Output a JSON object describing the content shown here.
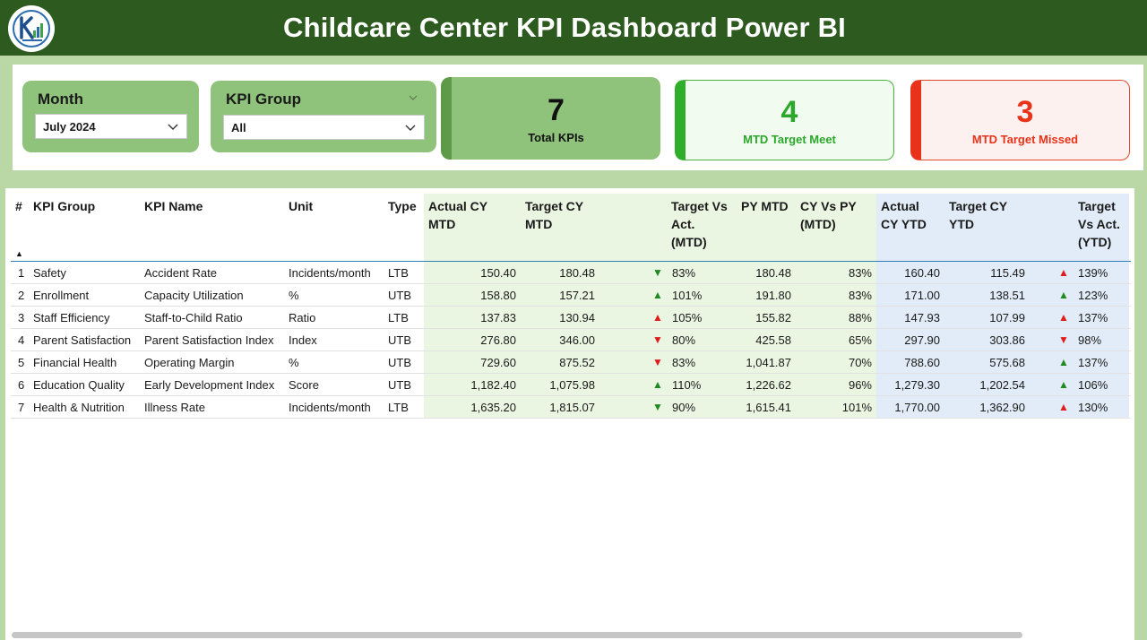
{
  "title": "Childcare Center KPI Dashboard Power BI",
  "slicers": {
    "month": {
      "label": "Month",
      "value": "July 2024"
    },
    "kpi_group": {
      "label": "KPI Group",
      "value": "All"
    }
  },
  "cards": {
    "total": {
      "value": "7",
      "label": "Total KPIs"
    },
    "meet": {
      "value": "4",
      "label": "MTD Target Meet"
    },
    "missed": {
      "value": "3",
      "label": "MTD Target Missed"
    }
  },
  "colors": {
    "header_bg": "#2d5a1e",
    "slicer_bg": "#8fc27a",
    "meet_green": "#2aa82a",
    "missed_red": "#e8331a",
    "mtd_bg": "#eaf6e2",
    "ytd_bg": "#e1ecf8"
  },
  "table": {
    "headers": {
      "num": "#",
      "group": "KPI Group",
      "name": "KPI Name",
      "unit": "Unit",
      "type": "Type",
      "actual_mtd_1": "Actual CY",
      "actual_mtd_2": "MTD",
      "target_mtd_1": "Target CY",
      "target_mtd_2": "MTD",
      "tva_mtd_1": "Target Vs",
      "tva_mtd_2": "Act.",
      "tva_mtd_3": "(MTD)",
      "py_mtd": "PY MTD",
      "cyvpy_1": "CY Vs PY",
      "cyvpy_2": "(MTD)",
      "actual_ytd_1": "Actual",
      "actual_ytd_2": "CY YTD",
      "target_ytd_1": "Target CY",
      "target_ytd_2": "YTD",
      "tva_ytd_1": "Target",
      "tva_ytd_2": "Vs Act.",
      "tva_ytd_3": "(YTD)"
    },
    "rows": [
      {
        "num": "1",
        "group": "Safety",
        "name": "Accident Rate",
        "unit": "Incidents/month",
        "type": "LTB",
        "actual_mtd": "150.40",
        "target_mtd": "180.48",
        "mtd_icon": "down-green",
        "tva_mtd": "83%",
        "py_mtd": "180.48",
        "cyvpy": "83%",
        "actual_ytd": "160.40",
        "target_ytd": "115.49",
        "ytd_icon": "up-red",
        "tva_ytd": "139%"
      },
      {
        "num": "2",
        "group": "Enrollment",
        "name": "Capacity Utilization",
        "unit": "%",
        "type": "UTB",
        "actual_mtd": "158.80",
        "target_mtd": "157.21",
        "mtd_icon": "up-green",
        "tva_mtd": "101%",
        "py_mtd": "191.80",
        "cyvpy": "83%",
        "actual_ytd": "171.00",
        "target_ytd": "138.51",
        "ytd_icon": "up-green",
        "tva_ytd": "123%"
      },
      {
        "num": "3",
        "group": "Staff Efficiency",
        "name": "Staff-to-Child Ratio",
        "unit": "Ratio",
        "type": "LTB",
        "actual_mtd": "137.83",
        "target_mtd": "130.94",
        "mtd_icon": "up-red",
        "tva_mtd": "105%",
        "py_mtd": "155.82",
        "cyvpy": "88%",
        "actual_ytd": "147.93",
        "target_ytd": "107.99",
        "ytd_icon": "up-red",
        "tva_ytd": "137%"
      },
      {
        "num": "4",
        "group": "Parent Satisfaction",
        "name": "Parent Satisfaction Index",
        "unit": "Index",
        "type": "UTB",
        "actual_mtd": "276.80",
        "target_mtd": "346.00",
        "mtd_icon": "down-red",
        "tva_mtd": "80%",
        "py_mtd": "425.58",
        "cyvpy": "65%",
        "actual_ytd": "297.90",
        "target_ytd": "303.86",
        "ytd_icon": "down-red",
        "tva_ytd": "98%"
      },
      {
        "num": "5",
        "group": "Financial Health",
        "name": "Operating Margin",
        "unit": "%",
        "type": "UTB",
        "actual_mtd": "729.60",
        "target_mtd": "875.52",
        "mtd_icon": "down-red",
        "tva_mtd": "83%",
        "py_mtd": "1,041.87",
        "cyvpy": "70%",
        "actual_ytd": "788.60",
        "target_ytd": "575.68",
        "ytd_icon": "up-green",
        "tva_ytd": "137%"
      },
      {
        "num": "6",
        "group": "Education Quality",
        "name": "Early Development Index",
        "unit": "Score",
        "type": "UTB",
        "actual_mtd": "1,182.40",
        "target_mtd": "1,075.98",
        "mtd_icon": "up-green",
        "tva_mtd": "110%",
        "py_mtd": "1,226.62",
        "cyvpy": "96%",
        "actual_ytd": "1,279.30",
        "target_ytd": "1,202.54",
        "ytd_icon": "up-green",
        "tva_ytd": "106%"
      },
      {
        "num": "7",
        "group": "Health & Nutrition",
        "name": "Illness Rate",
        "unit": "Incidents/month",
        "type": "LTB",
        "actual_mtd": "1,635.20",
        "target_mtd": "1,815.07",
        "mtd_icon": "down-green",
        "tva_mtd": "90%",
        "py_mtd": "1,615.41",
        "cyvpy": "101%",
        "actual_ytd": "1,770.00",
        "target_ytd": "1,362.90",
        "ytd_icon": "up-red",
        "tva_ytd": "130%"
      }
    ]
  }
}
